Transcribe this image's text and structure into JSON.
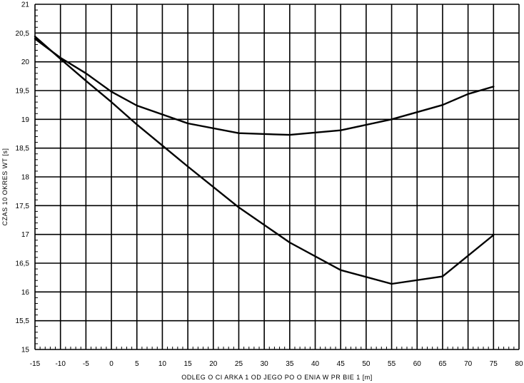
{
  "chart_data": {
    "type": "line",
    "xlabel": "ODLEG O    CI    ARKA 1 OD JEGO PO  O  ENIA W PR  BIE 1 [m]",
    "ylabel": "CZAS 10 OKRES WT [s]",
    "xlim": [
      -15,
      80
    ],
    "ylim": [
      15,
      21
    ],
    "xticks": [
      -15,
      -10,
      -5,
      0,
      5,
      10,
      15,
      20,
      25,
      30,
      35,
      40,
      45,
      50,
      55,
      60,
      65,
      70,
      75,
      80
    ],
    "yticks": [
      15,
      15.5,
      16,
      16.5,
      17,
      17.5,
      18,
      18.5,
      19,
      19.5,
      20,
      20.5,
      21
    ],
    "xtick_labels": [
      "-15",
      "-10",
      "-5",
      "0",
      "5",
      "10",
      "15",
      "20",
      "25",
      "30",
      "35",
      "40",
      "45",
      "50",
      "55",
      "60",
      "65",
      "70",
      "75",
      "80"
    ],
    "ytick_labels": [
      "15",
      "15,5",
      "16",
      "16,5",
      "17",
      "17,5",
      "18",
      "18,5",
      "19",
      "19,5",
      "20",
      "20,5",
      "21"
    ],
    "grid": true,
    "series": [
      {
        "x": [
          -15,
          -10,
          -5,
          0,
          5,
          15,
          25,
          35,
          45,
          55,
          65,
          70,
          75
        ],
        "values": [
          20.4,
          20.07,
          19.8,
          19.48,
          19.24,
          18.93,
          18.76,
          18.73,
          18.81,
          19.0,
          19.25,
          19.44,
          19.57
        ]
      },
      {
        "x": [
          -15,
          -10,
          -5,
          0,
          5,
          15,
          25,
          35,
          45,
          55,
          65,
          75
        ],
        "values": [
          20.44,
          20.05,
          19.67,
          19.3,
          18.91,
          18.18,
          17.47,
          16.86,
          16.38,
          16.14,
          16.27,
          16.99
        ]
      }
    ],
    "colors": {
      "line": "#000000",
      "grid": "#000000",
      "background": "#ffffff"
    }
  }
}
